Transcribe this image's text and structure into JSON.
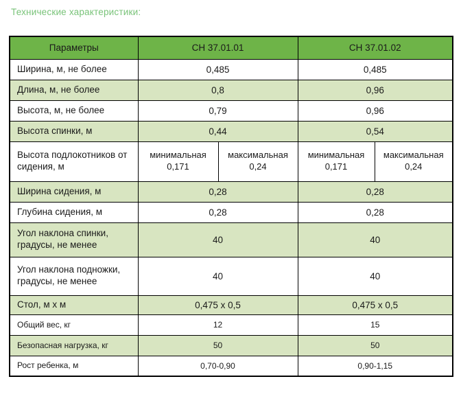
{
  "page": {
    "title": "Технические характеристики:"
  },
  "colors": {
    "title_green": "#79c379",
    "header_green": "#6eb448",
    "row_green": "#d8e5c1",
    "border_black": "#000000"
  },
  "table": {
    "headers": {
      "param": "Параметры",
      "model1": "СН 37.01.01",
      "model2": "СН 37.01.02"
    },
    "rows": [
      {
        "param": "Ширина, м, не более",
        "values": [
          "0,485",
          "0,485"
        ]
      },
      {
        "param": "Длина, м, не более",
        "values": [
          "0,8",
          "0,96"
        ]
      },
      {
        "param": "Высота, м, не более",
        "values": [
          "0,79",
          "0,96"
        ]
      },
      {
        "param": "Высота спинки, м",
        "values": [
          "0,44",
          "0,54"
        ]
      },
      {
        "param": "Высота подлокотников от сидения, м",
        "subcells": [
          {
            "label": "минимальная",
            "value": "0,171"
          },
          {
            "label": "максимальная",
            "value": "0,24"
          },
          {
            "label": "минимальная",
            "value": "0,171"
          },
          {
            "label": "максимальная",
            "value": "0,24"
          }
        ]
      },
      {
        "param": "Ширина сидения, м",
        "values": [
          "0,28",
          "0,28"
        ]
      },
      {
        "param": "Глубина сидения, м",
        "values": [
          "0,28",
          "0,28"
        ]
      },
      {
        "param": "Угол наклона спинки, градусы, не менее",
        "values": [
          "40",
          "40"
        ]
      },
      {
        "param": "Угол наклона подножки, градусы, не менее",
        "values": [
          "40",
          "40"
        ]
      },
      {
        "param": "Стол, м х м",
        "values": [
          "0,475 х 0,5",
          "0,475 х 0,5"
        ]
      },
      {
        "param": "Общий вес, кг",
        "values": [
          "12",
          "15"
        ]
      },
      {
        "param": "Безопасная нагрузка, кг",
        "values": [
          "50",
          "50"
        ]
      },
      {
        "param": "Рост ребенка, м",
        "values": [
          "0,70-0,90",
          "0,90-1,15"
        ]
      }
    ]
  }
}
